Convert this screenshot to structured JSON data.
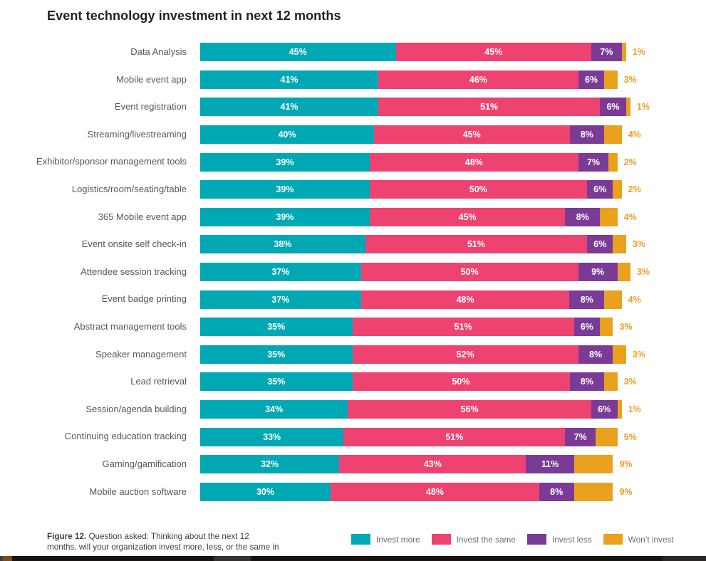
{
  "page": {
    "title": "Event technology investment in next 12 months"
  },
  "figure_caption": {
    "bold": "Figure 12.",
    "line1_rest": " Question asked: Thinking about the next 12",
    "line2": "months, will your organization invest more, less, or the same in"
  },
  "legend": [
    {
      "label": "Invest more",
      "color": "#00A8B4"
    },
    {
      "label": "Invest the same",
      "color": "#EE4371"
    },
    {
      "label": "Invest less",
      "color": "#7A3B97"
    },
    {
      "label": "Won’t invest",
      "color": "#EAA11E"
    }
  ],
  "chart_data": {
    "type": "bar",
    "stacked": true,
    "orientation": "horizontal",
    "title": "Event technology investment in next 12 months",
    "value_suffix": "%",
    "axis_range_percent": [
      0,
      100
    ],
    "grid": false,
    "legend_position": "bottom",
    "categories": [
      "Data Analysis",
      "Mobile event app",
      "Event registration",
      "Streaming/livestreaming",
      "Exhibitor/sponsor management tools",
      "Logistics/room/seating/table",
      "365 Mobile event app",
      "Event onsite self check-in",
      "Attendee session tracking",
      "Event badge printing",
      "Abstract management tools",
      "Speaker management",
      "Lead retrieval",
      "Session/agenda building",
      "Continuing education tracking",
      "Gaming/gamification",
      "Mobile auction software"
    ],
    "series": [
      {
        "name": "Invest more",
        "color": "#00A8B4",
        "values": [
          45,
          41,
          41,
          40,
          39,
          39,
          39,
          38,
          37,
          37,
          35,
          35,
          35,
          34,
          33,
          32,
          30
        ]
      },
      {
        "name": "Invest the same",
        "color": "#EE4371",
        "values": [
          45,
          46,
          51,
          45,
          48,
          50,
          45,
          51,
          50,
          48,
          51,
          52,
          50,
          56,
          51,
          43,
          48
        ]
      },
      {
        "name": "Invest less",
        "color": "#7A3B97",
        "values": [
          7,
          6,
          6,
          8,
          7,
          6,
          8,
          6,
          9,
          8,
          6,
          8,
          8,
          6,
          7,
          11,
          8
        ]
      },
      {
        "name": "Won’t invest",
        "color": "#EAA11E",
        "values": [
          1,
          3,
          1,
          4,
          2,
          2,
          4,
          3,
          3,
          4,
          3,
          3,
          3,
          1,
          5,
          9,
          9
        ]
      }
    ]
  }
}
